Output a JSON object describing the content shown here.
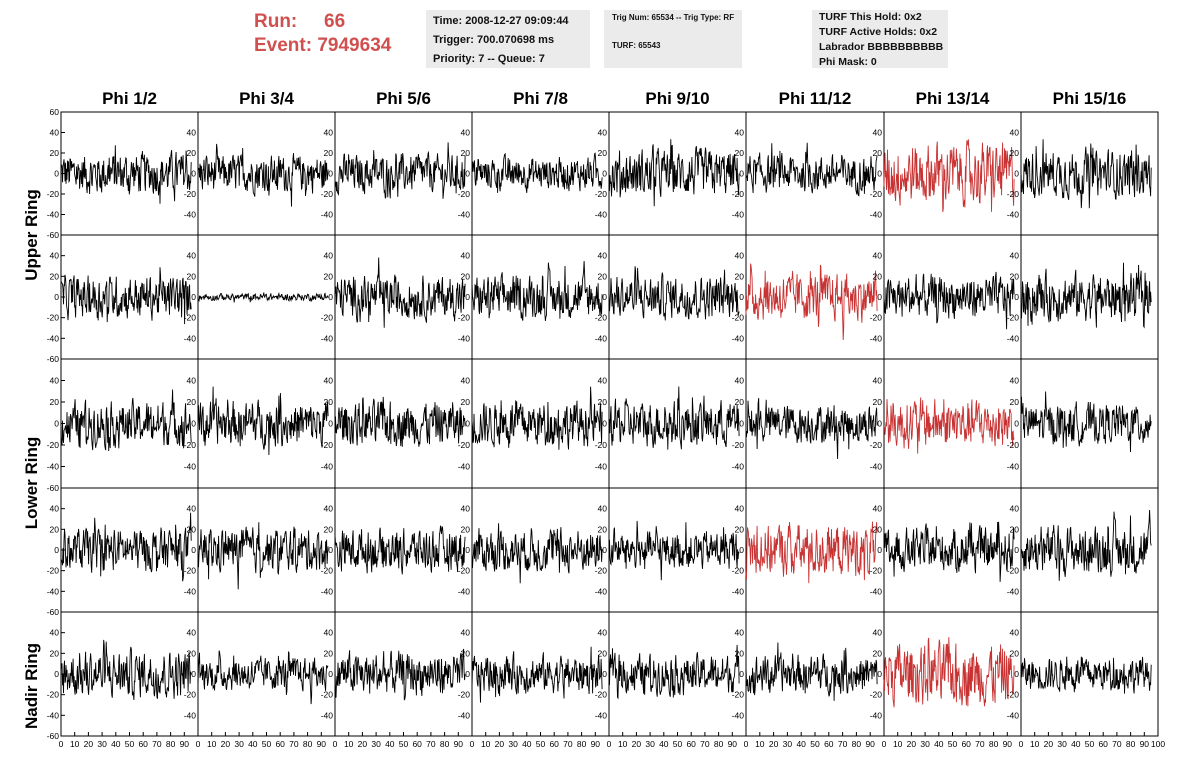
{
  "header": {
    "run_label": "Run:",
    "run_value": "66",
    "event_label": "Event:",
    "event_value": "7949634",
    "time": "Time: 2008-12-27 09:09:44",
    "trigger": "Trigger: 700.070698 ms",
    "priority": "Priority: 7 -- Queue: 7",
    "trig_num": "Trig Num: 65534 -- Trig Type: RF",
    "turf": "TURF: 65543",
    "turf_hold": "TURF This Hold: 0x2",
    "turf_active": "TURF Active Holds: 0x2",
    "labrador": "Labrador BBBBBBBBBB",
    "phi_mask": "Phi Mask: 0"
  },
  "chart_data": {
    "type": "line",
    "layout": "grid of waveform panels, 5 rings x 8 phi sectors",
    "columns": [
      "Phi 1/2",
      "Phi 3/4",
      "Phi 5/6",
      "Phi 7/8",
      "Phi 9/10",
      "Phi 11/12",
      "Phi 13/14",
      "Phi 15/16"
    ],
    "row_labels": [
      "Upper Ring",
      "Lower Ring",
      "Nadir Ring"
    ],
    "ylim": [
      -60,
      60
    ],
    "yticks": [
      -60,
      -40,
      -20,
      0,
      20,
      40,
      60
    ],
    "xlim": [
      0,
      100
    ],
    "xticks": [
      0,
      10,
      20,
      30,
      40,
      50,
      60,
      70,
      80,
      90,
      100
    ],
    "samples_per_trace": 260,
    "line_color": "#000000",
    "triggered_color": "#c83232",
    "panels": [
      [
        {
          "amp": 18,
          "triggered": false
        },
        {
          "amp": 16,
          "triggered": false
        },
        {
          "amp": 16,
          "triggered": false
        },
        {
          "amp": 14,
          "triggered": false
        },
        {
          "amp": 20,
          "triggered": false
        },
        {
          "amp": 16,
          "triggered": false
        },
        {
          "amp": 26,
          "triggered": true
        },
        {
          "amp": 20,
          "triggered": false
        }
      ],
      [
        {
          "amp": 18,
          "triggered": false
        },
        {
          "amp": 3,
          "triggered": false
        },
        {
          "amp": 18,
          "triggered": false
        },
        {
          "amp": 18,
          "triggered": false
        },
        {
          "amp": 18,
          "triggered": false
        },
        {
          "amp": 20,
          "triggered": true
        },
        {
          "amp": 18,
          "triggered": false
        },
        {
          "amp": 20,
          "triggered": false
        }
      ],
      [
        {
          "amp": 18,
          "triggered": false
        },
        {
          "amp": 18,
          "triggered": false
        },
        {
          "amp": 18,
          "triggered": false
        },
        {
          "amp": 18,
          "triggered": false
        },
        {
          "amp": 18,
          "triggered": false
        },
        {
          "amp": 16,
          "triggered": false
        },
        {
          "amp": 20,
          "triggered": true
        },
        {
          "amp": 16,
          "triggered": false
        }
      ],
      [
        {
          "amp": 18,
          "triggered": false
        },
        {
          "amp": 18,
          "triggered": false
        },
        {
          "amp": 18,
          "triggered": false
        },
        {
          "amp": 18,
          "triggered": false
        },
        {
          "amp": 16,
          "triggered": false
        },
        {
          "amp": 22,
          "triggered": true
        },
        {
          "amp": 18,
          "triggered": false
        },
        {
          "amp": 20,
          "triggered": false
        }
      ],
      [
        {
          "amp": 20,
          "triggered": false
        },
        {
          "amp": 14,
          "triggered": false
        },
        {
          "amp": 18,
          "triggered": false
        },
        {
          "amp": 16,
          "triggered": false
        },
        {
          "amp": 16,
          "triggered": false
        },
        {
          "amp": 16,
          "triggered": false
        },
        {
          "amp": 26,
          "triggered": true
        },
        {
          "amp": 14,
          "triggered": false
        }
      ]
    ]
  }
}
